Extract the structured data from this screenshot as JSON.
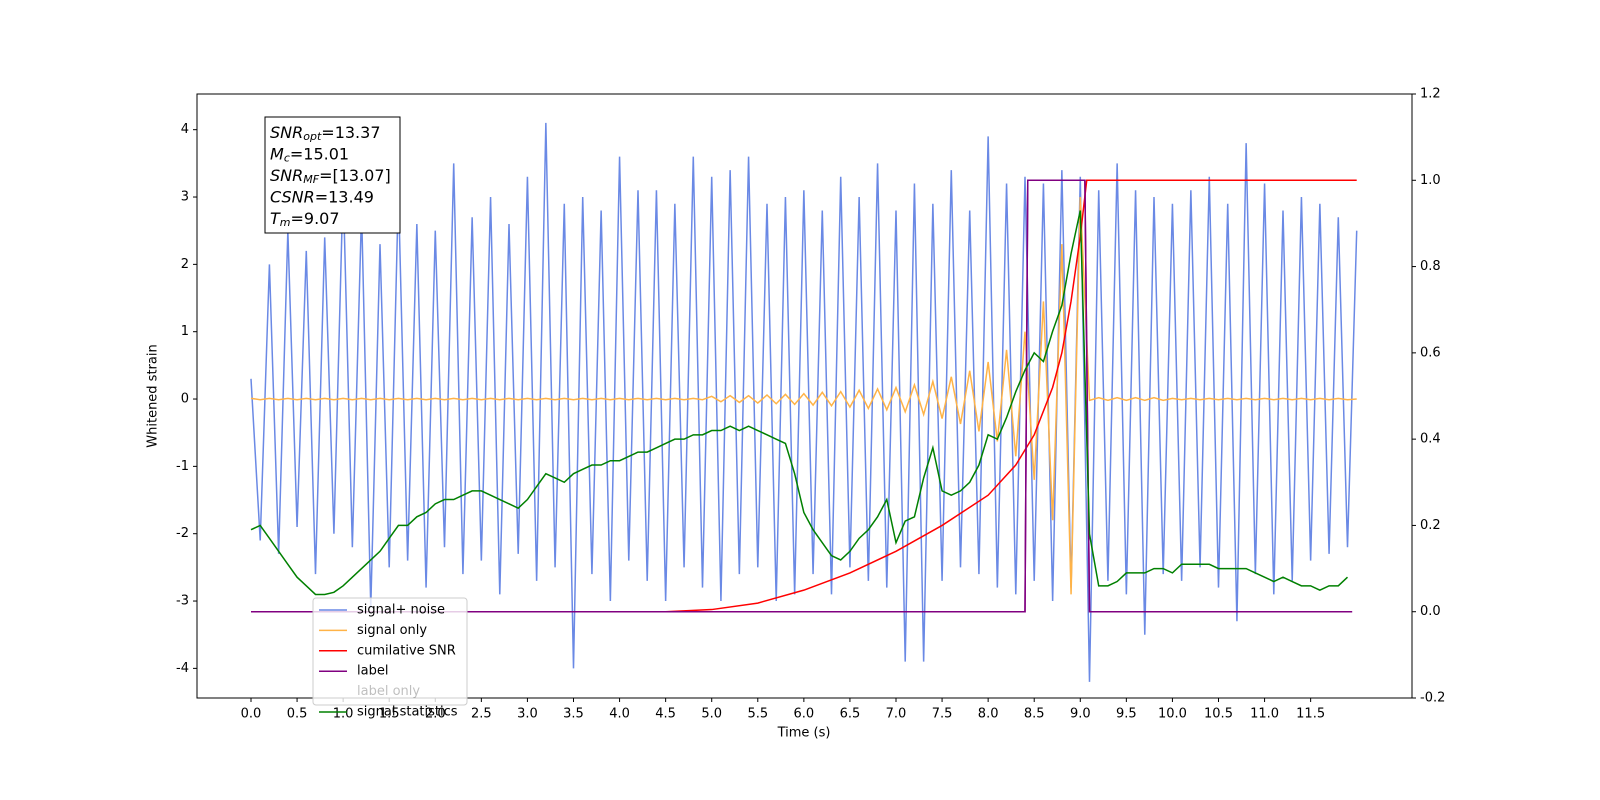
{
  "chart_data": {
    "type": "line",
    "xlabel": "Time (s)",
    "ylabel": "Whitened strain",
    "xlim": [
      -0.586,
      12.6
    ],
    "ylim": [
      -4.44,
      4.53
    ],
    "y2lim": [
      -0.2,
      1.2
    ],
    "xticks": [
      {
        "value": 0,
        "label": "0.0"
      },
      0.5,
      {
        "value": 1,
        "label": "1.0"
      },
      1.5,
      {
        "value": 2,
        "label": "2.0"
      },
      2.5,
      {
        "value": 3,
        "label": "3.0"
      },
      3.5,
      {
        "value": 4,
        "label": "4.0"
      },
      4.5,
      {
        "value": 5,
        "label": "5.0"
      },
      5.5,
      {
        "value": 6,
        "label": "6.0"
      },
      6.5,
      {
        "value": 7,
        "label": "7.0"
      },
      7.5,
      {
        "value": 8,
        "label": "8.0"
      },
      8.5,
      {
        "value": 9,
        "label": "9.0"
      },
      9.5,
      {
        "value": 10,
        "label": "10.0"
      },
      10.5,
      {
        "value": 11,
        "label": "11.0"
      },
      11.5
    ],
    "yticks": [
      -4,
      -3,
      -2,
      -1,
      0,
      1,
      2,
      3,
      4
    ],
    "y2ticks": [
      -0.2,
      {
        "value": 0,
        "label": "0.0"
      },
      0.2,
      0.4,
      0.6,
      0.8,
      {
        "value": 1,
        "label": "1.0"
      },
      1.2
    ],
    "annotations": [
      {
        "base": "SNR",
        "sub": "opt",
        "rest": "=13.37"
      },
      {
        "base": "M",
        "sub": "c",
        "rest": "=15.01"
      },
      {
        "base": "SNR",
        "sub": "MF",
        "rest": "=[13.07]"
      },
      {
        "base": "CSNR",
        "rest": "=13.49"
      },
      {
        "base": "T",
        "sub": "m",
        "rest": "=9.07"
      }
    ],
    "series": [
      {
        "name": "signal+ noise",
        "color": "#6a89e5",
        "axis": "y",
        "x": [
          0,
          0.1,
          0.2,
          0.3,
          0.4,
          0.5,
          0.6,
          0.7,
          0.8,
          0.9,
          1,
          1.1,
          1.2,
          1.3,
          1.4,
          1.5,
          1.6,
          1.7,
          1.8,
          1.9,
          2,
          2.1,
          2.2,
          2.3,
          2.4,
          2.5,
          2.6,
          2.7,
          2.8,
          2.9,
          3,
          3.1,
          3.2,
          3.3,
          3.4,
          3.5,
          3.6,
          3.7,
          3.8,
          3.9,
          4,
          4.1,
          4.2,
          4.3,
          4.4,
          4.5,
          4.6,
          4.7,
          4.8,
          4.9,
          5,
          5.1,
          5.2,
          5.3,
          5.4,
          5.5,
          5.6,
          5.7,
          5.8,
          5.9,
          6,
          6.1,
          6.2,
          6.3,
          6.4,
          6.5,
          6.6,
          6.7,
          6.8,
          6.9,
          7,
          7.1,
          7.2,
          7.3,
          7.4,
          7.5,
          7.6,
          7.7,
          7.8,
          7.9,
          8,
          8.1,
          8.2,
          8.3,
          8.4,
          8.5,
          8.6,
          8.7,
          8.8,
          8.9,
          9,
          9.1,
          9.2,
          9.3,
          9.4,
          9.5,
          9.6,
          9.7,
          9.8,
          9.9,
          10,
          10.1,
          10.2,
          10.3,
          10.4,
          10.5,
          10.6,
          10.7,
          10.8,
          10.9,
          11,
          11.1,
          11.2,
          11.3,
          11.4,
          11.5,
          11.6,
          11.7,
          11.8,
          11.9,
          12
        ],
        "values": [
          0.3,
          -2.1,
          2.0,
          -2.3,
          2.5,
          -1.9,
          2.2,
          -2.6,
          2.4,
          -2.0,
          3.2,
          -2.2,
          2.8,
          -3.1,
          2.3,
          -2.5,
          3.1,
          -2.4,
          2.6,
          -2.8,
          2.5,
          -2.2,
          3.5,
          -2.6,
          2.7,
          -2.4,
          3.0,
          -2.9,
          2.6,
          -2.3,
          3.3,
          -2.7,
          4.1,
          -2.5,
          2.9,
          -4.0,
          3.0,
          -2.6,
          2.8,
          -3.0,
          3.6,
          -2.4,
          3.1,
          -2.7,
          3.1,
          -3.0,
          2.9,
          -2.5,
          3.6,
          -2.8,
          3.3,
          -3.0,
          3.4,
          -2.6,
          3.6,
          -2.5,
          2.9,
          -3.0,
          3.0,
          -2.9,
          3.1,
          -2.6,
          2.8,
          -2.9,
          3.3,
          -2.5,
          3.0,
          -2.7,
          3.5,
          -2.8,
          2.8,
          -3.9,
          3.2,
          -3.9,
          2.9,
          -2.7,
          3.4,
          -2.5,
          2.8,
          -2.6,
          3.9,
          -2.8,
          3.2,
          -2.9,
          3.3,
          -2.7,
          3.2,
          -3.0,
          3.4,
          -2.8,
          3.3,
          -4.2,
          3.1,
          -2.7,
          3.5,
          -2.9,
          3.1,
          -3.5,
          3.0,
          -2.6,
          2.9,
          -2.7,
          3.1,
          -2.5,
          3.3,
          -2.8,
          2.9,
          -3.3,
          3.8,
          -2.6,
          3.2,
          -2.9,
          2.8,
          -2.7,
          3.0,
          -2.4,
          2.9,
          -2.3,
          2.7,
          -2.2,
          2.5
        ]
      },
      {
        "name": "signal only",
        "color": "#ffb347",
        "axis": "y",
        "x": [
          0,
          0.1,
          0.2,
          0.3,
          0.4,
          0.5,
          0.6,
          0.7,
          0.8,
          0.9,
          1,
          1.1,
          1.2,
          1.3,
          1.4,
          1.5,
          1.6,
          1.7,
          1.8,
          1.9,
          2,
          2.1,
          2.2,
          2.3,
          2.4,
          2.5,
          2.6,
          2.7,
          2.8,
          2.9,
          3,
          3.1,
          3.2,
          3.3,
          3.4,
          3.5,
          3.6,
          3.7,
          3.8,
          3.9,
          4,
          4.1,
          4.2,
          4.3,
          4.4,
          4.5,
          4.6,
          4.7,
          4.8,
          4.9,
          5,
          5.1,
          5.2,
          5.3,
          5.4,
          5.5,
          5.6,
          5.7,
          5.8,
          5.9,
          6,
          6.1,
          6.2,
          6.3,
          6.4,
          6.5,
          6.6,
          6.7,
          6.8,
          6.9,
          7,
          7.1,
          7.2,
          7.3,
          7.4,
          7.5,
          7.6,
          7.7,
          7.8,
          7.9,
          8,
          8.1,
          8.2,
          8.3,
          8.4,
          8.5,
          8.6,
          8.7,
          8.8,
          8.9,
          9,
          9.1,
          9.2,
          9.3,
          9.4,
          9.5,
          9.6,
          9.7,
          9.8,
          9.9,
          10,
          10.1,
          10.2,
          10.3,
          10.4,
          10.5,
          10.6,
          10.7,
          10.8,
          10.9,
          11,
          11.1,
          11.2,
          11.3,
          11.4,
          11.5,
          11.6,
          11.7,
          11.8,
          11.9,
          12
        ],
        "values": [
          0.01,
          -0.01,
          0.01,
          -0.01,
          0.01,
          -0.01,
          0.01,
          -0.01,
          0.01,
          -0.01,
          0.01,
          -0.01,
          0.01,
          -0.01,
          0.01,
          -0.01,
          0.01,
          -0.01,
          0.01,
          -0.01,
          0.01,
          -0.01,
          0.01,
          -0.01,
          0.01,
          -0.01,
          0.01,
          -0.01,
          0.01,
          -0.01,
          0.01,
          -0.01,
          0.01,
          -0.01,
          0.01,
          -0.01,
          0.01,
          -0.01,
          0.01,
          -0.01,
          0.01,
          -0.01,
          0.01,
          -0.01,
          0.01,
          -0.01,
          0.01,
          -0.01,
          0.01,
          -0.01,
          0.04,
          -0.04,
          0.05,
          -0.05,
          0.05,
          -0.06,
          0.06,
          -0.07,
          0.07,
          -0.08,
          0.08,
          -0.09,
          0.1,
          -0.1,
          0.11,
          -0.12,
          0.13,
          -0.14,
          0.15,
          -0.16,
          0.17,
          -0.19,
          0.21,
          -0.23,
          0.26,
          -0.29,
          0.33,
          -0.37,
          0.42,
          -0.48,
          0.55,
          -0.63,
          0.73,
          -0.85,
          1.0,
          -1.2,
          1.45,
          -1.8,
          2.3,
          -2.9,
          3.0,
          -0.02,
          0.02,
          -0.02,
          0.02,
          -0.02,
          0.02,
          -0.02,
          0.02,
          -0.02,
          0.01,
          -0.01,
          0.01,
          -0.01,
          0.01,
          -0.01,
          0.01,
          -0.01,
          0.01,
          -0.01,
          0.01,
          -0.01,
          0.01,
          -0.01,
          0.01,
          -0.01,
          0.01,
          -0.01,
          0.01,
          -0.01,
          0.0
        ]
      },
      {
        "name": "cumilative SNR",
        "color": "#ff0000",
        "axis": "y2",
        "x": [
          0,
          4.5,
          5.0,
          5.5,
          6.0,
          6.5,
          7.0,
          7.5,
          8.0,
          8.3,
          8.5,
          8.7,
          8.8,
          8.9,
          9.0,
          9.07,
          9.1,
          12.0
        ],
        "values": [
          0,
          0,
          0.005,
          0.02,
          0.05,
          0.09,
          0.14,
          0.2,
          0.27,
          0.34,
          0.41,
          0.52,
          0.6,
          0.72,
          0.87,
          1.0,
          1.0,
          1.0
        ]
      },
      {
        "name": "label",
        "color": "#800080",
        "axis": "y2",
        "x": [
          0,
          8.4,
          8.43,
          9.05,
          9.1,
          11.95
        ],
        "values": [
          0,
          0,
          1,
          1,
          0,
          0
        ]
      },
      {
        "name": "label only",
        "color": "#800080",
        "axis": "y2",
        "x": [
          0,
          8.4,
          8.43,
          9.05,
          9.1,
          11.95
        ],
        "values": [
          0,
          0,
          1,
          1,
          0,
          0
        ]
      },
      {
        "name": "signal statistics",
        "color": "#008000",
        "axis": "y2",
        "x": [
          0,
          0.1,
          0.2,
          0.3,
          0.4,
          0.5,
          0.6,
          0.7,
          0.8,
          0.9,
          1,
          1.1,
          1.2,
          1.3,
          1.4,
          1.5,
          1.6,
          1.7,
          1.8,
          1.9,
          2,
          2.1,
          2.2,
          2.3,
          2.4,
          2.5,
          2.6,
          2.7,
          2.8,
          2.9,
          3,
          3.1,
          3.2,
          3.3,
          3.4,
          3.5,
          3.6,
          3.7,
          3.8,
          3.9,
          4,
          4.1,
          4.2,
          4.3,
          4.4,
          4.5,
          4.6,
          4.7,
          4.8,
          4.9,
          5,
          5.1,
          5.2,
          5.3,
          5.4,
          5.5,
          5.6,
          5.7,
          5.8,
          5.9,
          6,
          6.1,
          6.2,
          6.3,
          6.4,
          6.5,
          6.6,
          6.7,
          6.8,
          6.9,
          7,
          7.1,
          7.2,
          7.3,
          7.4,
          7.5,
          7.6,
          7.7,
          7.8,
          7.9,
          8,
          8.1,
          8.2,
          8.3,
          8.4,
          8.5,
          8.6,
          8.7,
          8.8,
          8.9,
          9,
          9.1,
          9.2,
          9.3,
          9.4,
          9.5,
          9.6,
          9.7,
          9.8,
          9.9,
          10,
          10.1,
          10.2,
          10.3,
          10.4,
          10.5,
          10.6,
          10.7,
          10.8,
          10.9,
          11,
          11.1,
          11.2,
          11.3,
          11.4,
          11.5,
          11.6,
          11.7,
          11.8,
          11.9
        ],
        "values": [
          0.19,
          0.2,
          0.17,
          0.14,
          0.11,
          0.08,
          0.06,
          0.04,
          0.04,
          0.045,
          0.06,
          0.08,
          0.1,
          0.12,
          0.14,
          0.17,
          0.2,
          0.2,
          0.22,
          0.23,
          0.25,
          0.26,
          0.26,
          0.27,
          0.28,
          0.28,
          0.27,
          0.26,
          0.25,
          0.24,
          0.26,
          0.29,
          0.32,
          0.31,
          0.3,
          0.32,
          0.33,
          0.34,
          0.34,
          0.35,
          0.35,
          0.36,
          0.37,
          0.37,
          0.38,
          0.39,
          0.4,
          0.4,
          0.41,
          0.41,
          0.42,
          0.42,
          0.43,
          0.42,
          0.43,
          0.42,
          0.41,
          0.4,
          0.39,
          0.32,
          0.23,
          0.19,
          0.16,
          0.13,
          0.12,
          0.14,
          0.17,
          0.19,
          0.22,
          0.26,
          0.16,
          0.21,
          0.22,
          0.31,
          0.38,
          0.28,
          0.27,
          0.28,
          0.3,
          0.34,
          0.41,
          0.4,
          0.45,
          0.51,
          0.56,
          0.6,
          0.58,
          0.65,
          0.71,
          0.83,
          0.93,
          0.18,
          0.06,
          0.06,
          0.07,
          0.09,
          0.09,
          0.09,
          0.1,
          0.1,
          0.09,
          0.11,
          0.11,
          0.11,
          0.11,
          0.1,
          0.1,
          0.1,
          0.1,
          0.09,
          0.08,
          0.07,
          0.08,
          0.07,
          0.06,
          0.06,
          0.05,
          0.06,
          0.06,
          0.08
        ]
      }
    ]
  }
}
